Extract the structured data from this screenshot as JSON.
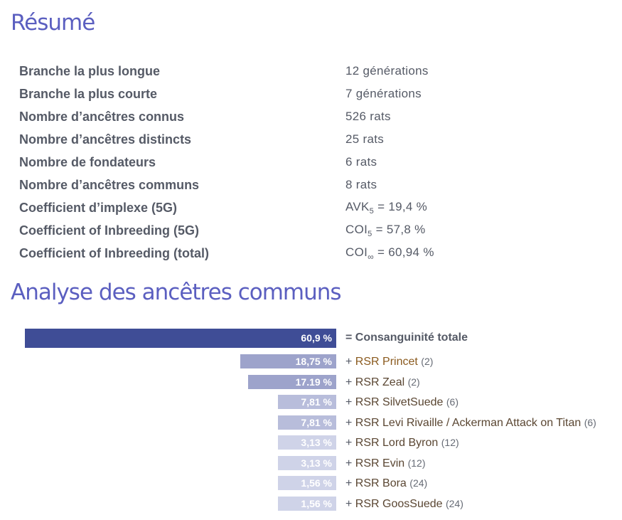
{
  "summary": {
    "title": "Résumé",
    "rows": [
      {
        "label": "Branche la plus longue",
        "value": "12 générations"
      },
      {
        "label": "Branche la plus courte",
        "value": "7 générations"
      },
      {
        "label": "Nombre d’ancêtres connus",
        "value": "526 rats"
      },
      {
        "label": "Nombre d’ancêtres distincts",
        "value": "25 rats"
      },
      {
        "label": "Nombre de fondateurs",
        "value": "6 rats"
      },
      {
        "label": "Nombre d’ancêtres communs",
        "value": "8 rats"
      }
    ],
    "coefficients": [
      {
        "label": "Coefficient d’implexe (5G)",
        "prefix": "AVK",
        "sub": "5",
        "value": "= 19,4 %"
      },
      {
        "label": "Coefficient of Inbreeding (5G)",
        "prefix": "COI",
        "sub": "5",
        "value": "= 57,8 %"
      },
      {
        "label": "Coefficient of Inbreeding (total)",
        "prefix": "COI",
        "sub": "∞",
        "value": "= 60,94 %"
      }
    ]
  },
  "analysis": {
    "title": "Analyse des ancêtres communs",
    "colors": {
      "total": "#3f4d96",
      "high": "#9da3cb",
      "mid": "#b8bddb",
      "low": "#cfd3e8"
    },
    "total": {
      "value_label": "60,9 %",
      "value": 60.9,
      "label": "= Consanguinité totale"
    },
    "ancestors": [
      {
        "value_label": "18,75 %",
        "value": 18.75,
        "prefix": "+ ",
        "name": "RSR Princet",
        "count": "(2)"
      },
      {
        "value_label": "17.19 %",
        "value": 17.19,
        "prefix": "+ ",
        "name": "RSR Zeal",
        "count": "(2)"
      },
      {
        "value_label": "7,81 %",
        "value": 7.81,
        "prefix": "+ ",
        "name": "RSR SilvetSuede",
        "count": "(6)"
      },
      {
        "value_label": "7,81 %",
        "value": 7.81,
        "prefix": "+ ",
        "name": "RSR Levi Rivaille / Ackerman Attack on Titan",
        "count": "(6)"
      },
      {
        "value_label": "3,13 %",
        "value": 3.13,
        "prefix": "+ ",
        "name": "RSR Lord Byron",
        "count": "(12)"
      },
      {
        "value_label": "3,13 %",
        "value": 3.13,
        "prefix": "+ ",
        "name": "RSR Evin",
        "count": "(12)"
      },
      {
        "value_label": "1,56 %",
        "value": 1.56,
        "prefix": "+ ",
        "name": "RSR Bora",
        "count": "(24)"
      },
      {
        "value_label": "1,56 %",
        "value": 1.56,
        "prefix": "+ ",
        "name": "RSR GoosSuede",
        "count": "(24)"
      }
    ]
  }
}
